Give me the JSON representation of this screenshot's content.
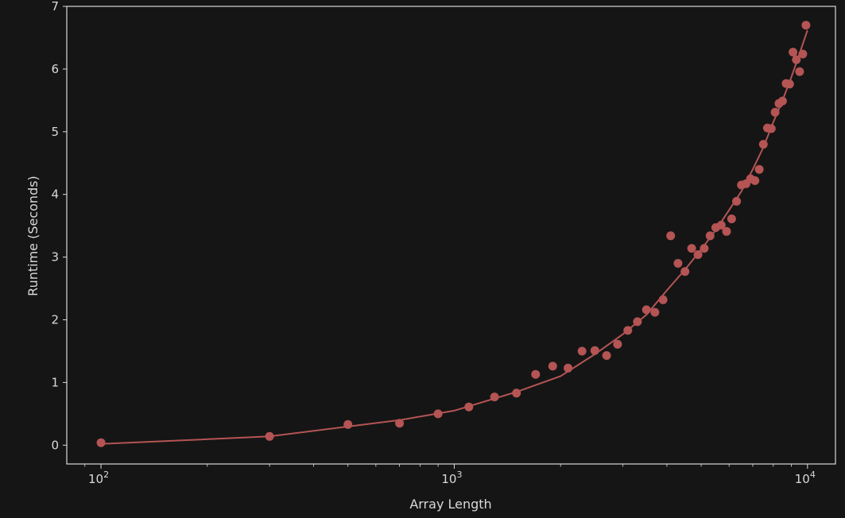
{
  "chart_data": {
    "type": "scatter",
    "title": "",
    "xlabel": "Array Length",
    "ylabel": "Runtime (Seconds)",
    "xscale": "log",
    "xlim": [
      80,
      12000
    ],
    "ylim": [
      -0.3,
      7
    ],
    "x_ticks": [
      {
        "value": 100,
        "base": "10",
        "exp": "2"
      },
      {
        "value": 1000,
        "base": "10",
        "exp": "3"
      },
      {
        "value": 10000,
        "base": "10",
        "exp": "4"
      }
    ],
    "y_ticks": [
      0,
      1,
      2,
      3,
      4,
      5,
      6,
      7
    ],
    "grid": false,
    "colors": {
      "background": "#151515",
      "axes": "#d9d9d9",
      "series": "#b45454"
    },
    "series": [
      {
        "kind": "points",
        "x": [
          100,
          300,
          500,
          700,
          900,
          1100,
          1300,
          1500,
          1700,
          1900,
          2100,
          2300,
          2500,
          2700,
          2900,
          3100,
          3300,
          3500,
          3700,
          3900,
          4100,
          4300,
          4500,
          4700,
          4900,
          5100,
          5300,
          5500,
          5700,
          5900,
          6100,
          6300,
          6500,
          6700,
          6900,
          7100,
          7300,
          7500,
          7700,
          7900,
          8100,
          8300,
          8500,
          8700,
          8900,
          9100,
          9300,
          9500,
          9700,
          9900
        ],
        "y": [
          0.04,
          0.14,
          0.33,
          0.35,
          0.5,
          0.61,
          0.77,
          0.83,
          1.13,
          1.26,
          1.23,
          1.5,
          1.51,
          1.43,
          1.61,
          1.83,
          1.97,
          2.16,
          2.12,
          2.32,
          3.34,
          2.9,
          2.77,
          3.14,
          3.04,
          3.14,
          3.34,
          3.47,
          3.51,
          3.41,
          3.61,
          3.89,
          4.15,
          4.17,
          4.25,
          4.22,
          4.4,
          4.8,
          5.06,
          5.05,
          5.31,
          5.45,
          5.49,
          5.77,
          5.76,
          6.27,
          6.15,
          5.96,
          6.24,
          6.7
        ]
      },
      {
        "kind": "fit-line",
        "x": [
          100,
          300,
          700,
          1000,
          1500,
          2000,
          2500,
          3000,
          3500,
          4000,
          4500,
          5000,
          5500,
          6000,
          6500,
          7000,
          7500,
          8000,
          8500,
          9000,
          9500,
          10000
        ],
        "y": [
          0.02,
          0.14,
          0.4,
          0.55,
          0.85,
          1.1,
          1.45,
          1.77,
          2.08,
          2.47,
          2.8,
          3.12,
          3.43,
          3.75,
          4.05,
          4.4,
          4.75,
          5.15,
          5.5,
          5.87,
          6.25,
          6.62
        ]
      }
    ]
  }
}
